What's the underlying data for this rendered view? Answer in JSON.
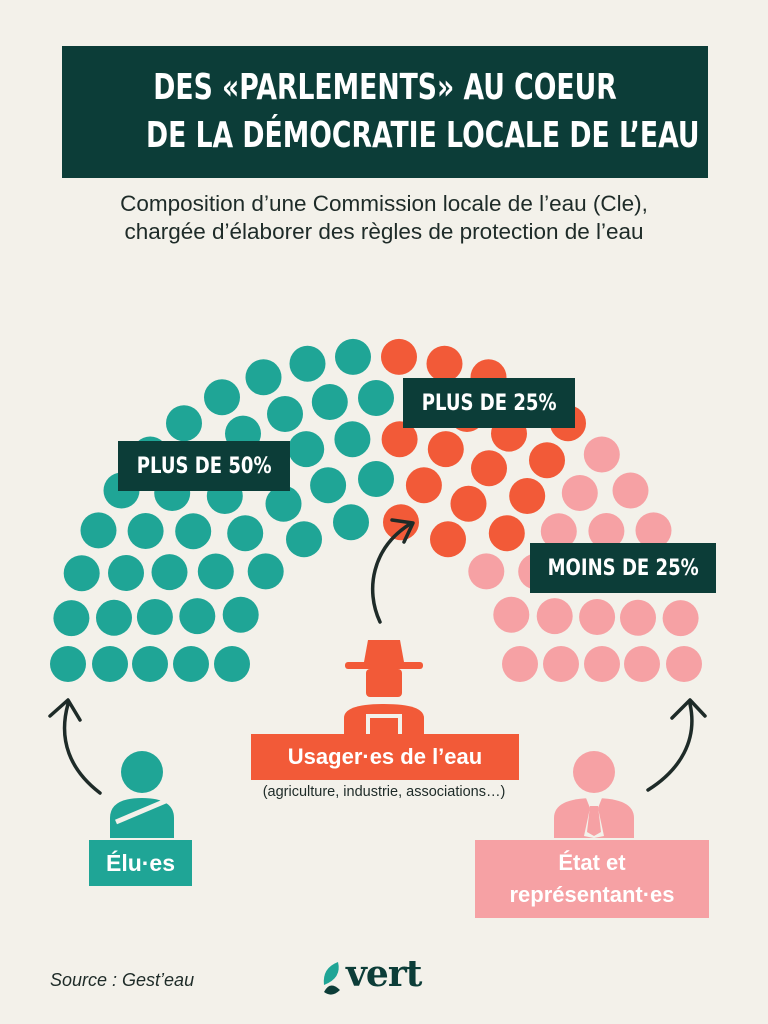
{
  "title": {
    "line1": "DES «PARLEMENTS» AU COEUR",
    "line2": "DE LA DÉMOCRATIE LOCALE DE L’EAU"
  },
  "subtitle": {
    "line1": "Composition d’une Commission locale de l’eau (Cle),",
    "line2": "chargée d’élaborer des règles de protection de l’eau"
  },
  "groups": [
    {
      "key": "elus",
      "label": "Élu·es",
      "share": "PLUS DE 50%",
      "color": "#1fa596",
      "icon": "person-sash-icon"
    },
    {
      "key": "usagers",
      "label": "Usager·es de l’eau",
      "share": "PLUS DE 25%",
      "color": "#f25a38",
      "icon": "farmer-hat-icon"
    },
    {
      "key": "etat",
      "label_line1": "État et",
      "label_line2": "représentant·es",
      "share": "MOINS DE 25%",
      "color": "#f6a1a4",
      "icon": "person-tie-icon"
    }
  ],
  "usagers_note": "(agriculture, industrie, associations…)",
  "source": "Source : Gest’eau",
  "logo": {
    "text": "vert",
    "icon": "leaf-icon"
  },
  "colors": {
    "dark": "#0c3d38",
    "background": "#f3f1ea",
    "teal": "#1fa596",
    "orange": "#f25a38",
    "pink": "#f6a1a4"
  }
}
